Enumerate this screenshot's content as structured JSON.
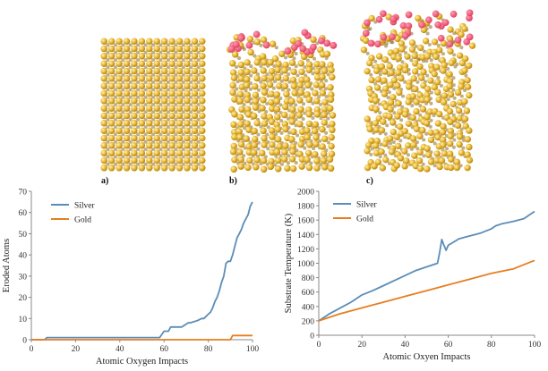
{
  "panels": [
    {
      "label": "a)",
      "grid_cols": 14,
      "grid_rows": 18,
      "surface_rows": 0,
      "oxygen_count": 0,
      "roughness": 0
    },
    {
      "label": "b)",
      "grid_cols": 14,
      "grid_rows": 18,
      "surface_rows": 2,
      "oxygen_count": 22,
      "roughness": 0.35
    },
    {
      "label": "c)",
      "grid_cols": 14,
      "grid_rows": 21,
      "surface_rows": 4,
      "oxygen_count": 30,
      "roughness": 0.6
    }
  ],
  "colors": {
    "silver": "#5b8db8",
    "gold": "#e67e22",
    "atom": "#e8b83a",
    "atom_dark": "#b8860b",
    "oxygen": "#e04060"
  },
  "chart_data": [
    {
      "type": "line",
      "title": "",
      "xlabel": "Atomic Oxygen Impacts",
      "ylabel": "Eroded Atoms",
      "xlim": [
        0,
        100
      ],
      "ylim": [
        0,
        70
      ],
      "xticks": [
        0,
        20,
        40,
        60,
        80,
        100
      ],
      "yticks": [
        0,
        10,
        20,
        30,
        40,
        50,
        60,
        70
      ],
      "legend_position": "top-left",
      "grid": false,
      "series": [
        {
          "name": "Silver",
          "color": "#5b8db8",
          "x": [
            0,
            6,
            7,
            58,
            60,
            62,
            63,
            65,
            68,
            71,
            72,
            75,
            77,
            78,
            80,
            81,
            82,
            83,
            84,
            85,
            86,
            87,
            88,
            89,
            90,
            91,
            92,
            93,
            94,
            95,
            96,
            97,
            98,
            99,
            100
          ],
          "y": [
            0,
            0,
            1,
            1,
            4,
            4,
            6,
            6,
            6,
            8,
            8,
            9,
            10,
            10,
            12,
            13,
            15,
            18,
            20,
            23,
            27,
            30,
            36,
            37,
            37,
            40,
            44,
            48,
            50,
            52,
            55,
            57,
            59,
            63,
            65
          ]
        },
        {
          "name": "Gold",
          "color": "#e67e22",
          "x": [
            0,
            90,
            91,
            100
          ],
          "y": [
            0,
            0,
            2,
            2
          ]
        }
      ]
    },
    {
      "type": "line",
      "title": "",
      "xlabel": "Atomic Oxyen Impacts",
      "ylabel": "Substrate Temperature (K)",
      "xlim": [
        0,
        100
      ],
      "ylim": [
        0,
        2000
      ],
      "xticks": [
        0,
        20,
        40,
        60,
        80,
        100
      ],
      "yticks": [
        0,
        200,
        400,
        600,
        800,
        1000,
        1200,
        1400,
        1600,
        1800,
        2000
      ],
      "legend_position": "top-left",
      "grid": false,
      "series": [
        {
          "name": "Silver",
          "color": "#5b8db8",
          "x": [
            0,
            5,
            10,
            15,
            20,
            25,
            30,
            35,
            40,
            45,
            50,
            55,
            56,
            57,
            58,
            59,
            60,
            65,
            70,
            75,
            80,
            82,
            85,
            90,
            95,
            98,
            100
          ],
          "y": [
            200,
            300,
            380,
            460,
            560,
            620,
            690,
            760,
            830,
            900,
            950,
            1000,
            1150,
            1330,
            1250,
            1180,
            1250,
            1340,
            1380,
            1420,
            1480,
            1520,
            1550,
            1580,
            1620,
            1680,
            1720
          ]
        },
        {
          "name": "Gold",
          "color": "#e67e22",
          "x": [
            0,
            10,
            20,
            30,
            40,
            50,
            55,
            60,
            70,
            80,
            90,
            95,
            100
          ],
          "y": [
            200,
            300,
            380,
            460,
            540,
            620,
            660,
            700,
            780,
            860,
            920,
            980,
            1040
          ]
        }
      ]
    }
  ]
}
